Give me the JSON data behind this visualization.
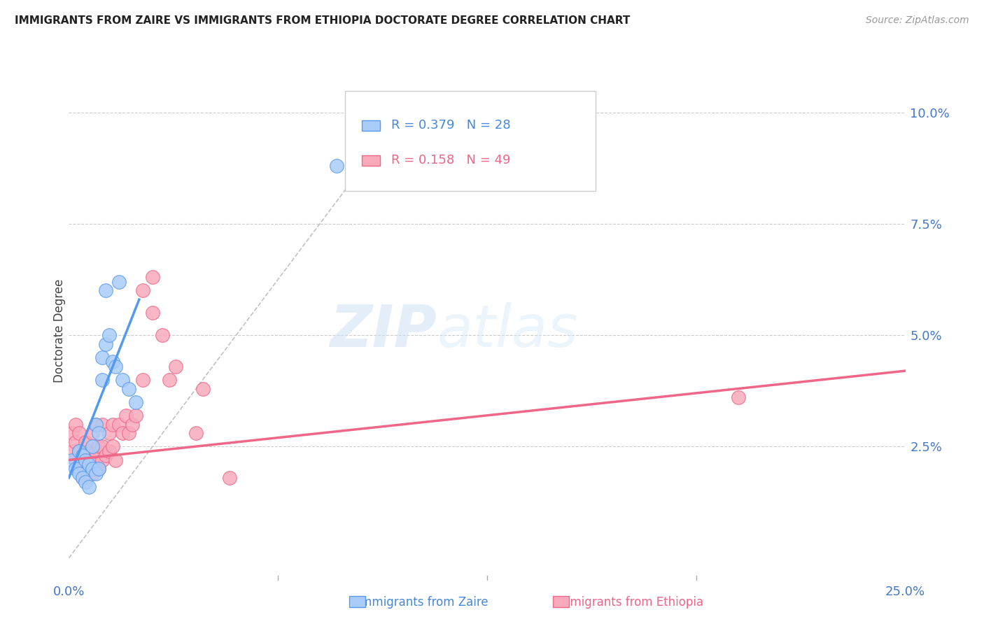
{
  "title": "IMMIGRANTS FROM ZAIRE VS IMMIGRANTS FROM ETHIOPIA DOCTORATE DEGREE CORRELATION CHART",
  "source": "Source: ZipAtlas.com",
  "ylabel": "Doctorate Degree",
  "ytick_labels": [
    "2.5%",
    "5.0%",
    "7.5%",
    "10.0%"
  ],
  "ytick_vals": [
    0.025,
    0.05,
    0.075,
    0.1
  ],
  "xlim": [
    0.0,
    0.25
  ],
  "ylim": [
    -0.005,
    0.107
  ],
  "zaire_color": "#aaccf8",
  "ethiopia_color": "#f8aabb",
  "zaire_line_color": "#5599ee",
  "ethiopia_line_color": "#ee6688",
  "diagonal_color": "#bbbbbb",
  "legend_R_zaire": "R = 0.379",
  "legend_N_zaire": "N = 28",
  "legend_R_ethiopia": "R = 0.158",
  "legend_N_ethiopia": "N = 49",
  "watermark_zip": "ZIP",
  "watermark_atlas": "atlas",
  "zaire_x": [
    0.001,
    0.002,
    0.003,
    0.003,
    0.004,
    0.004,
    0.005,
    0.005,
    0.006,
    0.006,
    0.007,
    0.007,
    0.008,
    0.008,
    0.009,
    0.009,
    0.01,
    0.01,
    0.011,
    0.011,
    0.012,
    0.013,
    0.014,
    0.015,
    0.016,
    0.018,
    0.02,
    0.08
  ],
  "zaire_y": [
    0.022,
    0.02,
    0.019,
    0.024,
    0.018,
    0.023,
    0.017,
    0.022,
    0.016,
    0.021,
    0.02,
    0.025,
    0.019,
    0.03,
    0.02,
    0.028,
    0.04,
    0.045,
    0.048,
    0.06,
    0.05,
    0.044,
    0.043,
    0.062,
    0.04,
    0.038,
    0.035,
    0.088
  ],
  "ethiopia_x": [
    0.001,
    0.001,
    0.002,
    0.002,
    0.002,
    0.003,
    0.003,
    0.003,
    0.004,
    0.004,
    0.005,
    0.005,
    0.005,
    0.006,
    0.006,
    0.007,
    0.007,
    0.007,
    0.008,
    0.008,
    0.008,
    0.009,
    0.009,
    0.01,
    0.01,
    0.01,
    0.011,
    0.012,
    0.012,
    0.013,
    0.013,
    0.014,
    0.015,
    0.016,
    0.017,
    0.018,
    0.019,
    0.02,
    0.022,
    0.022,
    0.025,
    0.025,
    0.028,
    0.03,
    0.032,
    0.038,
    0.04,
    0.048,
    0.2
  ],
  "ethiopia_y": [
    0.024,
    0.028,
    0.022,
    0.026,
    0.03,
    0.02,
    0.024,
    0.028,
    0.018,
    0.022,
    0.018,
    0.022,
    0.026,
    0.02,
    0.024,
    0.019,
    0.022,
    0.028,
    0.02,
    0.024,
    0.03,
    0.02,
    0.025,
    0.022,
    0.025,
    0.03,
    0.023,
    0.024,
    0.028,
    0.025,
    0.03,
    0.022,
    0.03,
    0.028,
    0.032,
    0.028,
    0.03,
    0.032,
    0.04,
    0.06,
    0.055,
    0.063,
    0.05,
    0.04,
    0.043,
    0.028,
    0.038,
    0.018,
    0.036
  ],
  "zaire_line_x": [
    0.0,
    0.021
  ],
  "zaire_line_y": [
    0.018,
    0.058
  ],
  "ethiopia_line_x": [
    0.0,
    0.25
  ],
  "ethiopia_line_y": [
    0.022,
    0.042
  ]
}
